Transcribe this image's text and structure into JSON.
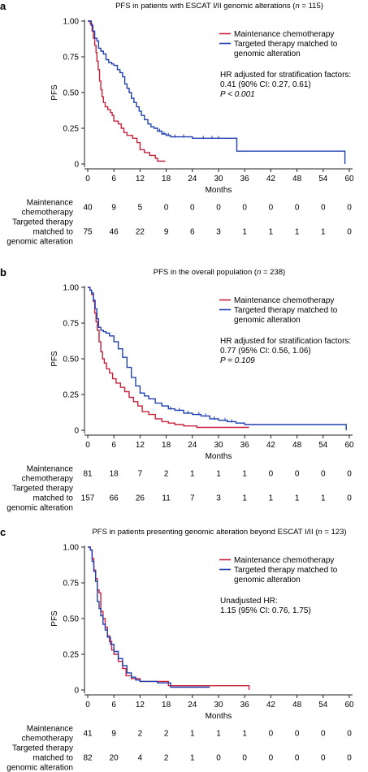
{
  "colors": {
    "chemo": "#c8203a",
    "targeted": "#1f3fb0",
    "axis": "#222222"
  },
  "chart_data": [
    {
      "panel": "a",
      "type": "line",
      "title": "PFS in patients with ESCAT I/II genomic alterations (",
      "title_n": "n",
      "title_tail": " = 115)",
      "xlabel": "Months",
      "ylabel": "PFS",
      "xlim": [
        0,
        60
      ],
      "ylim": [
        0,
        1
      ],
      "xticks": [
        0,
        6,
        12,
        18,
        24,
        30,
        36,
        42,
        48,
        54,
        60
      ],
      "yticks": [
        "0",
        "0.25",
        "0.50",
        "0.75",
        "1.00"
      ],
      "legend": [
        "Maintenance chemotherapy",
        "Targeted therapy matched to",
        "genomic alteration"
      ],
      "annotation": [
        "HR adjusted for stratification factors:",
        "0.41 (90% CI: 0.27, 0.61)",
        "P < 0.001"
      ],
      "series": [
        {
          "name": "Maintenance chemotherapy",
          "points": [
            [
              0,
              1.0
            ],
            [
              0.6,
              0.98
            ],
            [
              1.0,
              0.93
            ],
            [
              1.3,
              0.88
            ],
            [
              1.6,
              0.83
            ],
            [
              1.9,
              0.78
            ],
            [
              2.1,
              0.72
            ],
            [
              2.4,
              0.66
            ],
            [
              2.7,
              0.58
            ],
            [
              3.0,
              0.52
            ],
            [
              3.3,
              0.47
            ],
            [
              3.6,
              0.43
            ],
            [
              4.0,
              0.4
            ],
            [
              4.6,
              0.38
            ],
            [
              5.2,
              0.36
            ],
            [
              5.6,
              0.34
            ],
            [
              6.0,
              0.3
            ],
            [
              7.0,
              0.28
            ],
            [
              7.7,
              0.25
            ],
            [
              8.3,
              0.22
            ],
            [
              9.0,
              0.2
            ],
            [
              10.3,
              0.18
            ],
            [
              11.3,
              0.15
            ],
            [
              12.0,
              0.1
            ],
            [
              13.0,
              0.08
            ],
            [
              14.2,
              0.06
            ],
            [
              15.5,
              0.04
            ],
            [
              16.0,
              0.02
            ],
            [
              17.8,
              0.02
            ]
          ]
        },
        {
          "name": "Targeted therapy matched to genomic alteration",
          "points": [
            [
              0,
              1.0
            ],
            [
              0.8,
              0.97
            ],
            [
              1.2,
              0.93
            ],
            [
              1.6,
              0.88
            ],
            [
              2.1,
              0.86
            ],
            [
              2.5,
              0.81
            ],
            [
              3.0,
              0.79
            ],
            [
              3.6,
              0.77
            ],
            [
              4.2,
              0.73
            ],
            [
              4.8,
              0.71
            ],
            [
              5.5,
              0.7
            ],
            [
              6.0,
              0.69
            ],
            [
              6.8,
              0.66
            ],
            [
              7.4,
              0.64
            ],
            [
              8.0,
              0.61
            ],
            [
              8.5,
              0.56
            ],
            [
              9.0,
              0.53
            ],
            [
              9.5,
              0.5
            ],
            [
              10.0,
              0.46
            ],
            [
              10.6,
              0.43
            ],
            [
              11.2,
              0.4
            ],
            [
              11.8,
              0.37
            ],
            [
              12.3,
              0.34
            ],
            [
              13.0,
              0.31
            ],
            [
              13.8,
              0.28
            ],
            [
              14.5,
              0.26
            ],
            [
              15.2,
              0.25
            ],
            [
              16.0,
              0.23
            ],
            [
              17.0,
              0.21
            ],
            [
              18.0,
              0.2
            ],
            [
              19.0,
              0.19
            ],
            [
              24.0,
              0.18
            ],
            [
              34.2,
              0.18
            ],
            [
              34.2,
              0.09
            ],
            [
              59.0,
              0.09
            ],
            [
              59.0,
              0.0
            ]
          ],
          "censor": [
            16.5,
            17.5,
            18.5,
            20.0,
            22.0,
            26.5,
            28.5,
            30.0
          ]
        }
      ],
      "risk_table": {
        "rows": [
          {
            "label": [
              "Maintenance",
              "chemotherapy"
            ],
            "values": [
              "40",
              "9",
              "5",
              "0",
              "0",
              "0",
              "0",
              "0",
              "0",
              "0",
              "0"
            ]
          },
          {
            "label": [
              "Targeted therapy",
              "matched to",
              "genomic alteration"
            ],
            "values": [
              "75",
              "46",
              "22",
              "9",
              "6",
              "3",
              "1",
              "1",
              "1",
              "1",
              "0"
            ]
          }
        ]
      }
    },
    {
      "panel": "b",
      "type": "line",
      "title": "PFS in the overall population (",
      "title_n": "n",
      "title_tail": " = 238)",
      "xlabel": "Months",
      "ylabel": "PFS",
      "xlim": [
        0,
        60
      ],
      "ylim": [
        0,
        1
      ],
      "xticks": [
        0,
        6,
        12,
        18,
        24,
        30,
        36,
        42,
        48,
        54,
        60
      ],
      "yticks": [
        "0",
        "0.25",
        "0.50",
        "0.75",
        "1.00"
      ],
      "legend": [
        "Maintenance chemotherapy",
        "Targeted therapy matched to",
        "genomic alteration"
      ],
      "annotation": [
        "HR adjusted for stratification factors:",
        "0.77 (95% CI: 0.56, 1.06)",
        "P = 0.109"
      ],
      "series": [
        {
          "name": "Maintenance chemotherapy",
          "points": [
            [
              0,
              1.0
            ],
            [
              0.5,
              0.98
            ],
            [
              0.9,
              0.95
            ],
            [
              1.3,
              0.9
            ],
            [
              1.6,
              0.82
            ],
            [
              1.9,
              0.76
            ],
            [
              2.2,
              0.7
            ],
            [
              2.6,
              0.62
            ],
            [
              3.0,
              0.55
            ],
            [
              3.4,
              0.5
            ],
            [
              3.8,
              0.47
            ],
            [
              4.3,
              0.43
            ],
            [
              5.0,
              0.4
            ],
            [
              5.7,
              0.36
            ],
            [
              6.5,
              0.33
            ],
            [
              7.5,
              0.3
            ],
            [
              8.5,
              0.27
            ],
            [
              9.5,
              0.23
            ],
            [
              10.5,
              0.2
            ],
            [
              11.5,
              0.17
            ],
            [
              12.5,
              0.13
            ],
            [
              14.0,
              0.11
            ],
            [
              15.5,
              0.08
            ],
            [
              17.0,
              0.06
            ],
            [
              18.5,
              0.05
            ],
            [
              20.0,
              0.04
            ],
            [
              22.0,
              0.03
            ],
            [
              25.0,
              0.02
            ],
            [
              37.0,
              0.02
            ]
          ]
        },
        {
          "name": "Targeted therapy matched to genomic alteration",
          "points": [
            [
              0,
              1.0
            ],
            [
              0.5,
              0.98
            ],
            [
              0.9,
              0.96
            ],
            [
              1.3,
              0.91
            ],
            [
              1.7,
              0.85
            ],
            [
              2.1,
              0.78
            ],
            [
              2.5,
              0.72
            ],
            [
              3.0,
              0.7
            ],
            [
              3.6,
              0.69
            ],
            [
              4.2,
              0.68
            ],
            [
              5.0,
              0.66
            ],
            [
              6.0,
              0.62
            ],
            [
              7.0,
              0.57
            ],
            [
              8.0,
              0.51
            ],
            [
              9.0,
              0.44
            ],
            [
              10.0,
              0.37
            ],
            [
              11.0,
              0.31
            ],
            [
              12.0,
              0.26
            ],
            [
              13.0,
              0.24
            ],
            [
              14.0,
              0.22
            ],
            [
              15.5,
              0.19
            ],
            [
              17.0,
              0.17
            ],
            [
              18.5,
              0.15
            ],
            [
              20.0,
              0.14
            ],
            [
              22.0,
              0.12
            ],
            [
              24.0,
              0.11
            ],
            [
              26.0,
              0.1
            ],
            [
              28.0,
              0.08
            ],
            [
              30.0,
              0.07
            ],
            [
              32.0,
              0.06
            ],
            [
              34.0,
              0.05
            ],
            [
              36.0,
              0.04
            ],
            [
              59.3,
              0.04
            ],
            [
              59.3,
              0.0
            ]
          ],
          "censor": [
            19.0,
            21.0,
            23.0,
            25.5,
            27.0,
            29.0,
            31.5,
            33.0
          ]
        }
      ],
      "risk_table": {
        "rows": [
          {
            "label": [
              "Maintenance",
              "chemotherapy"
            ],
            "values": [
              "81",
              "18",
              "7",
              "2",
              "1",
              "1",
              "1",
              "0",
              "0",
              "0",
              "0"
            ]
          },
          {
            "label": [
              "Targeted therapy",
              "matched to",
              "genomic alteration"
            ],
            "values": [
              "157",
              "66",
              "26",
              "11",
              "7",
              "3",
              "1",
              "1",
              "1",
              "1",
              "0"
            ]
          }
        ]
      }
    },
    {
      "panel": "c",
      "type": "line",
      "title": "PFS in patients presenting genomic alteration beyond ESCAT I/II (",
      "title_n": "n",
      "title_tail": " = 123)",
      "xlabel": "Months",
      "ylabel": "PFS",
      "xlim": [
        0,
        60
      ],
      "ylim": [
        0,
        1
      ],
      "xticks": [
        0,
        6,
        12,
        18,
        24,
        30,
        36,
        42,
        48,
        54,
        60
      ],
      "yticks": [
        "0",
        "0.25",
        "0.50",
        "0.75",
        "1.00"
      ],
      "legend": [
        "Maintenance chemotherapy",
        "Targeted therapy matched to",
        "genomic alteration"
      ],
      "annotation": [
        "Unadjusted HR:",
        "1.15 (95% CI: 0.76, 1.75)"
      ],
      "series": [
        {
          "name": "Maintenance chemotherapy",
          "points": [
            [
              0,
              1.0
            ],
            [
              0.6,
              0.98
            ],
            [
              1.0,
              0.92
            ],
            [
              1.4,
              0.84
            ],
            [
              1.8,
              0.78
            ],
            [
              2.2,
              0.7
            ],
            [
              2.6,
              0.68
            ],
            [
              3.0,
              0.55
            ],
            [
              3.5,
              0.5
            ],
            [
              4.0,
              0.44
            ],
            [
              4.5,
              0.38
            ],
            [
              5.0,
              0.34
            ],
            [
              5.5,
              0.28
            ],
            [
              6.0,
              0.25
            ],
            [
              7.0,
              0.2
            ],
            [
              8.0,
              0.15
            ],
            [
              8.8,
              0.1
            ],
            [
              10.0,
              0.08
            ],
            [
              12.0,
              0.06
            ],
            [
              18.5,
              0.06
            ],
            [
              18.5,
              0.03
            ],
            [
              37.0,
              0.03
            ],
            [
              37.0,
              0.0
            ]
          ]
        },
        {
          "name": "Targeted therapy matched to genomic alteration",
          "points": [
            [
              0,
              1.0
            ],
            [
              0.6,
              0.98
            ],
            [
              1.0,
              0.9
            ],
            [
              1.4,
              0.83
            ],
            [
              1.8,
              0.76
            ],
            [
              2.2,
              0.62
            ],
            [
              2.6,
              0.57
            ],
            [
              3.0,
              0.52
            ],
            [
              3.5,
              0.46
            ],
            [
              4.0,
              0.42
            ],
            [
              4.5,
              0.37
            ],
            [
              5.2,
              0.32
            ],
            [
              6.0,
              0.27
            ],
            [
              7.0,
              0.22
            ],
            [
              8.0,
              0.17
            ],
            [
              9.0,
              0.12
            ],
            [
              10.0,
              0.09
            ],
            [
              11.0,
              0.07
            ],
            [
              12.0,
              0.06
            ],
            [
              16.0,
              0.05
            ],
            [
              18.0,
              0.05
            ],
            [
              19.0,
              0.02
            ],
            [
              28.0,
              0.02
            ]
          ]
        }
      ],
      "risk_table": {
        "rows": [
          {
            "label": [
              "Maintenance",
              "chemotherapy"
            ],
            "values": [
              "41",
              "9",
              "2",
              "2",
              "1",
              "1",
              "1",
              "0",
              "0",
              "0",
              "0"
            ]
          },
          {
            "label": [
              "Targeted therapy",
              "matched to",
              "genomic alteration"
            ],
            "values": [
              "82",
              "20",
              "4",
              "2",
              "1",
              "0",
              "0",
              "0",
              "0",
              "0",
              "0"
            ]
          }
        ]
      }
    }
  ]
}
